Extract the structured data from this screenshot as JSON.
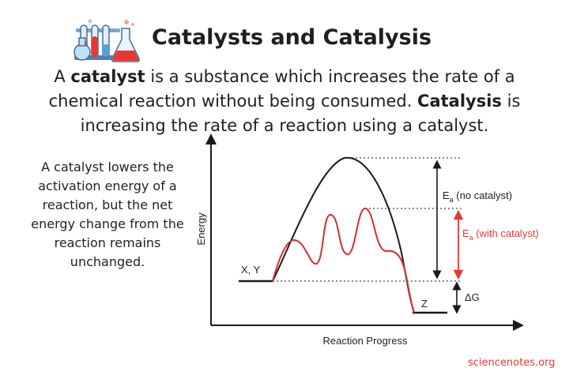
{
  "header": {
    "title": "Catalysts and Catalysis",
    "logo_icon": "lab-glassware-icon"
  },
  "intro": {
    "p1_before": "A ",
    "p1_term": "catalyst",
    "p1_after": " is a substance which increases the rate of a chemical reaction without being consumed. ",
    "p2_term": "Catalysis",
    "p2_after": " is increasing the rate of a reaction using a catalyst."
  },
  "side_note": "A catalyst lowers the activation energy of a reaction, but the net energy change from the reaction remains unchanged.",
  "diagram": {
    "y_axis_label": "Energy",
    "x_axis_label": "Reaction Progress",
    "reactants_label": "X, Y",
    "products_label": "Z",
    "ea_no_catalyst": {
      "symbol": "E",
      "sub": "a",
      "rest": " (no catalyst)"
    },
    "ea_with_catalyst": {
      "symbol": "E",
      "sub": "a",
      "rest": " (with catalyst)"
    },
    "delta_g_label": "ΔG",
    "colors": {
      "uncatalyzed": "#1a1a1a",
      "catalyzed": "#d32f2f",
      "ea_catalyst_arrow": "#e53935"
    }
  },
  "credit": "sciencenotes.org"
}
